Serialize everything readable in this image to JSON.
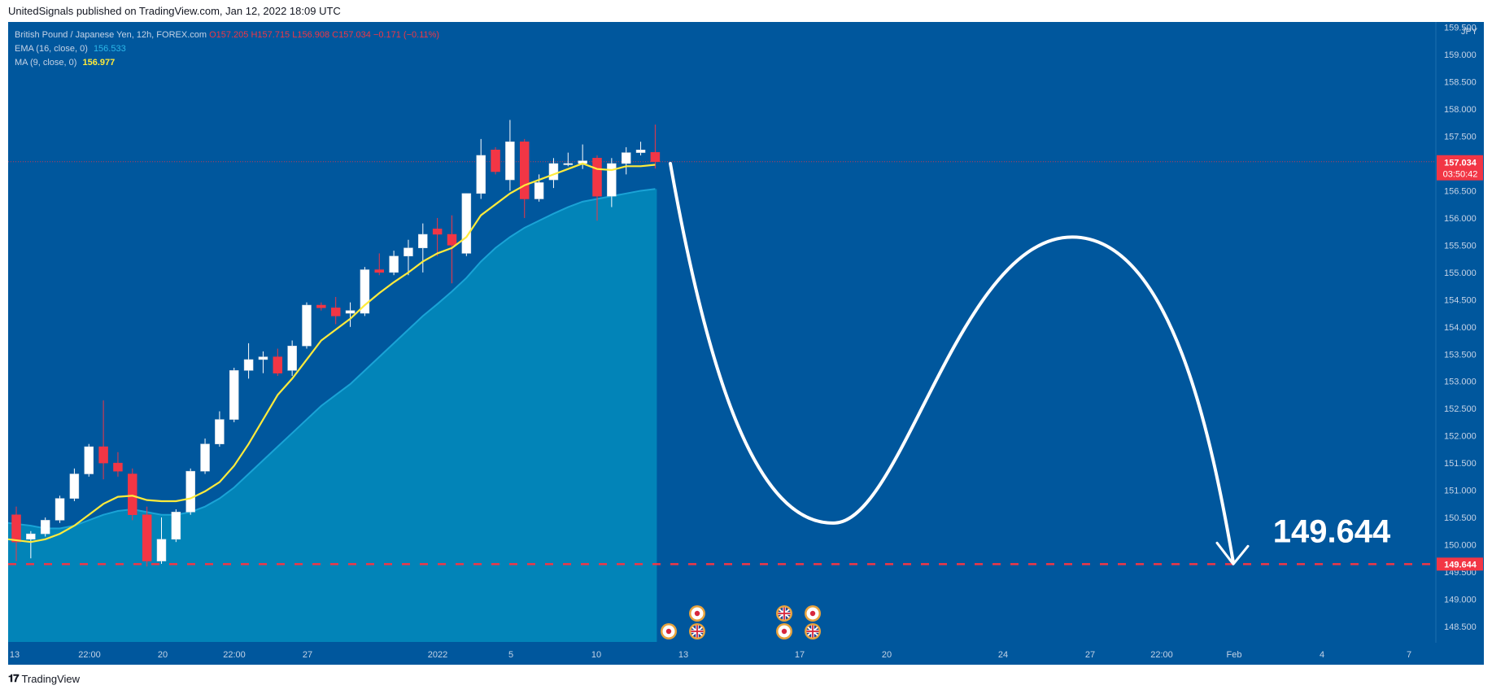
{
  "header": {
    "publisher_line": "UnitedSignals published on TradingView.com, Jan 12, 2022 18:09 UTC"
  },
  "legend": {
    "symbol": "British Pound / Japanese Yen, 12h, FOREX.com",
    "ohlc": "O157.205  H157.715  L156.908  C157.034  −0.171 (−0.11%)",
    "ema_label": "EMA (16, close, 0)",
    "ema_value": "156.533",
    "ma_label": "MA (9, close, 0)",
    "ma_value": "156.977"
  },
  "footer": {
    "brand": "TradingView"
  },
  "colors": {
    "background": "#00579d",
    "ema_fill": "#0284b8",
    "ma_line": "#ffeb3b",
    "bear": "#f23645",
    "bull": "#ffffff",
    "projection": "#ffffff",
    "target": "#f23645"
  },
  "chart_data": {
    "type": "candlestick",
    "symbol": "GBPJPY",
    "timeframe": "12h",
    "ylim": [
      148.2,
      159.45
    ],
    "y_ticks": [
      "148.500",
      "149.000",
      "149.500",
      "150.000",
      "150.500",
      "151.000",
      "151.500",
      "152.000",
      "152.500",
      "153.000",
      "153.500",
      "154.000",
      "154.500",
      "155.000",
      "155.500",
      "156.000",
      "156.500",
      "157.000",
      "157.500",
      "158.000",
      "158.500",
      "159.000",
      "159.500"
    ],
    "y_unit": "JPY",
    "x_ticks": [
      "13",
      "22:00",
      "20",
      "22:00",
      "27",
      "2022",
      "5",
      "10",
      "13",
      "17",
      "20",
      "24",
      "27",
      "22:00",
      "Feb",
      "4",
      "7"
    ],
    "candles": [
      [
        150.55,
        150.7,
        149.7,
        150.05
      ],
      [
        150.1,
        150.25,
        149.75,
        150.2
      ],
      [
        150.2,
        150.5,
        150.15,
        150.45
      ],
      [
        150.45,
        150.9,
        150.4,
        150.85
      ],
      [
        150.85,
        151.4,
        150.8,
        151.3
      ],
      [
        151.3,
        151.85,
        151.25,
        151.8
      ],
      [
        151.8,
        152.65,
        151.2,
        151.5
      ],
      [
        151.5,
        151.7,
        151.25,
        151.35
      ],
      [
        151.3,
        151.4,
        150.45,
        150.55
      ],
      [
        150.55,
        150.7,
        149.6,
        149.7
      ],
      [
        149.7,
        150.5,
        149.65,
        150.1
      ],
      [
        150.1,
        150.65,
        150.05,
        150.6
      ],
      [
        150.6,
        151.4,
        150.55,
        151.35
      ],
      [
        151.35,
        151.95,
        151.3,
        151.85
      ],
      [
        151.85,
        152.45,
        151.8,
        152.3
      ],
      [
        152.3,
        153.25,
        152.25,
        153.2
      ],
      [
        153.2,
        153.7,
        153.05,
        153.4
      ],
      [
        153.4,
        153.55,
        153.15,
        153.45
      ],
      [
        153.45,
        153.6,
        153.1,
        153.15
      ],
      [
        153.2,
        153.75,
        153.1,
        153.65
      ],
      [
        153.65,
        154.45,
        153.6,
        154.4
      ],
      [
        154.4,
        154.45,
        154.3,
        154.35
      ],
      [
        154.35,
        154.55,
        154.05,
        154.2
      ],
      [
        154.25,
        154.45,
        154.0,
        154.3
      ],
      [
        154.25,
        155.1,
        154.2,
        155.05
      ],
      [
        155.05,
        155.35,
        154.95,
        155.0
      ],
      [
        155.0,
        155.4,
        154.95,
        155.3
      ],
      [
        155.3,
        155.6,
        154.95,
        155.45
      ],
      [
        155.45,
        155.9,
        155.0,
        155.7
      ],
      [
        155.8,
        156.0,
        155.3,
        155.7
      ],
      [
        155.7,
        156.05,
        154.8,
        155.5
      ],
      [
        155.35,
        156.45,
        155.3,
        156.45
      ],
      [
        156.45,
        157.45,
        156.35,
        157.15
      ],
      [
        157.25,
        157.3,
        156.8,
        156.85
      ],
      [
        156.7,
        157.8,
        156.5,
        157.4
      ],
      [
        157.4,
        157.45,
        156.0,
        156.35
      ],
      [
        156.35,
        156.8,
        156.3,
        156.65
      ],
      [
        156.7,
        157.1,
        156.55,
        157.0
      ],
      [
        157.0,
        157.2,
        156.95,
        157.0
      ],
      [
        157.0,
        157.35,
        156.9,
        157.05
      ],
      [
        157.1,
        157.15,
        155.95,
        156.4
      ],
      [
        156.4,
        157.1,
        156.2,
        157.0
      ],
      [
        157.0,
        157.3,
        156.8,
        157.2
      ],
      [
        157.2,
        157.4,
        157.15,
        157.25
      ],
      [
        157.205,
        157.715,
        156.908,
        157.034
      ]
    ],
    "ma9": [
      150.1,
      150.05,
      150.1,
      150.2,
      150.35,
      150.55,
      150.75,
      150.88,
      150.9,
      150.82,
      150.8,
      150.8,
      150.85,
      150.98,
      151.15,
      151.45,
      151.85,
      152.3,
      152.75,
      153.05,
      153.4,
      153.75,
      153.95,
      154.15,
      154.4,
      154.62,
      154.82,
      155.0,
      155.2,
      155.35,
      155.45,
      155.65,
      156.05,
      156.25,
      156.45,
      156.6,
      156.7,
      156.8,
      156.9,
      157.0,
      156.9,
      156.88,
      156.95,
      156.95,
      156.977
    ],
    "ema16": [
      150.4,
      150.35,
      150.3,
      150.3,
      150.35,
      150.45,
      150.55,
      150.62,
      150.65,
      150.6,
      150.55,
      150.55,
      150.6,
      150.7,
      150.85,
      151.05,
      151.3,
      151.55,
      151.8,
      152.05,
      152.3,
      152.55,
      152.75,
      152.95,
      153.2,
      153.45,
      153.7,
      153.95,
      154.2,
      154.42,
      154.65,
      154.9,
      155.2,
      155.45,
      155.65,
      155.82,
      155.95,
      156.08,
      156.2,
      156.3,
      156.35,
      156.4,
      156.45,
      156.5,
      156.533
    ],
    "current_price": {
      "value": "157.034",
      "countdown": "03:50:42"
    },
    "projection": {
      "description": "drawn path",
      "points": [
        {
          "x": "12 Jan",
          "y": 157.0
        },
        {
          "x": "18 Jan",
          "y": 150.4
        },
        {
          "x": "26 Jan",
          "y": 155.65
        },
        {
          "x": "1 Feb",
          "y": 149.644
        }
      ]
    },
    "target": {
      "value": "149.644",
      "label": "149.644"
    },
    "event_markers": [
      {
        "row": 1,
        "flags": [
          "jp"
        ]
      },
      {
        "row": 0,
        "flags": [
          "jp"
        ]
      },
      {
        "row": 1,
        "flags": [
          "gb"
        ]
      },
      {
        "row": 0,
        "flags": [
          "gb"
        ]
      },
      {
        "row": 1,
        "flags": [
          "jp"
        ]
      },
      {
        "row": 0,
        "flags": [
          "jp"
        ]
      },
      {
        "row": 1,
        "flags": [
          "gb"
        ]
      }
    ]
  }
}
